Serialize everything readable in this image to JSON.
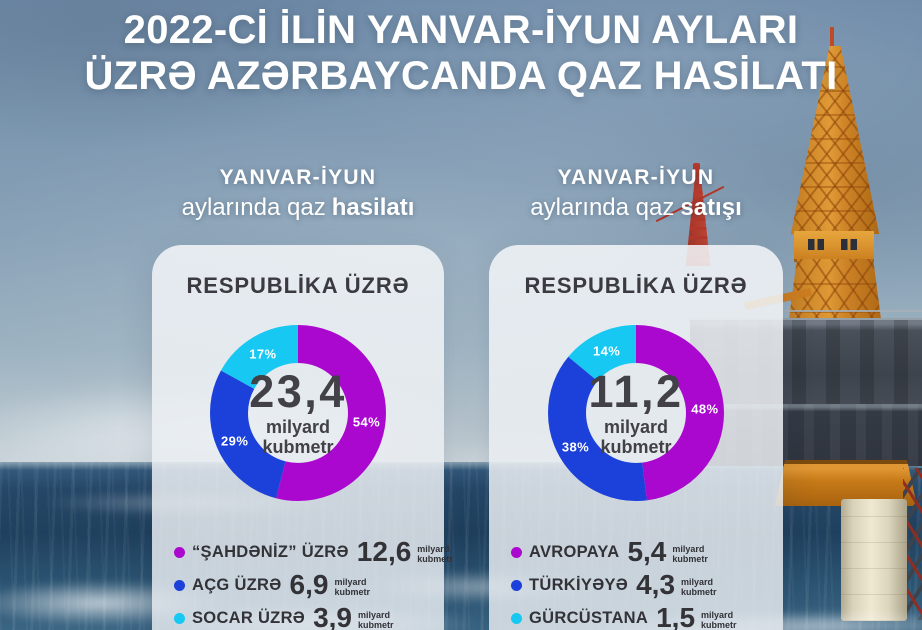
{
  "title": {
    "line1": "2022-Cİ İLİN YANVAR-İYUN AYLARI",
    "line2": "ÜZRƏ AZƏRBAYCANDA QAZ HASİLATI"
  },
  "legend_unit": [
    "milyard",
    "kubmetr"
  ],
  "colors": {
    "magenta": "#ab08cf",
    "blue": "#1c41da",
    "cyan": "#17c8f2",
    "dark_text": "#414147"
  },
  "chart_data": [
    {
      "type": "pie",
      "variant": "donut",
      "header_line1": "YANVAR-İYUN",
      "header_line2": "aylarında qaz",
      "header_line2_bold": "hasilatı",
      "card_title": "RESPUBLİKA ÜZRƏ",
      "center_value": "23,4",
      "center_unit_line1": "milyard",
      "center_unit_line2": "kubmetr",
      "total": 23.4,
      "unit": "milyard kubmetr",
      "segments": [
        {
          "name": "“ŞAHDƏNİZ” ÜZRƏ",
          "value": "12,6",
          "value_num": 12.6,
          "pct": 54,
          "pct_label": "54%",
          "color": "#ab08cf"
        },
        {
          "name": "AÇG ÜZRƏ",
          "value": "6,9",
          "value_num": 6.9,
          "pct": 29,
          "pct_label": "29%",
          "color": "#1c41da"
        },
        {
          "name": "SOCAR ÜZRƏ",
          "value": "3,9",
          "value_num": 3.9,
          "pct": 17,
          "pct_label": "17%",
          "color": "#17c8f2"
        }
      ]
    },
    {
      "type": "pie",
      "variant": "donut",
      "header_line1": "YANVAR-İYUN",
      "header_line2": "aylarında qaz",
      "header_line2_bold": "satışı",
      "card_title": "RESPUBLİKA ÜZRƏ",
      "center_value": "11,2",
      "center_unit_line1": "milyard",
      "center_unit_line2": "kubmetr",
      "total": 11.2,
      "unit": "milyard kubmetr",
      "segments": [
        {
          "name": "AVROPAYA",
          "value": "5,4",
          "value_num": 5.4,
          "pct": 48,
          "pct_label": "48%",
          "color": "#ab08cf"
        },
        {
          "name": "TÜRKİYƏYƏ",
          "value": "4,3",
          "value_num": 4.3,
          "pct": 38,
          "pct_label": "38%",
          "color": "#1c41da"
        },
        {
          "name": "GÜRCÜSTANA",
          "value": "1,5",
          "value_num": 1.5,
          "pct": 14,
          "pct_label": "14%",
          "color": "#17c8f2"
        }
      ]
    }
  ]
}
